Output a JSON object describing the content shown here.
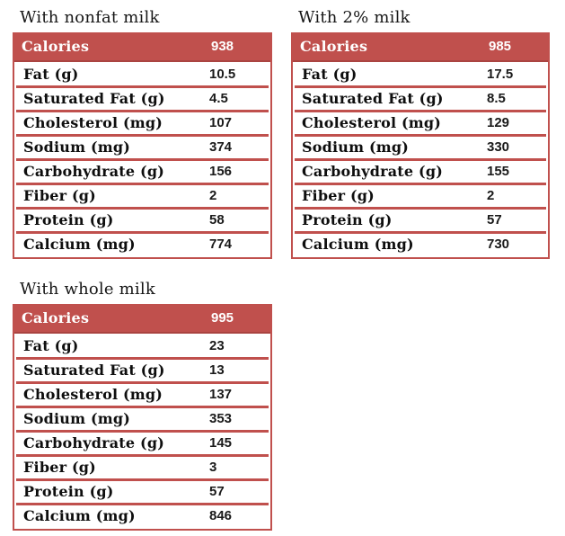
{
  "colors": {
    "accent": "#c0504d",
    "header_text": "#ffffff",
    "body_text": "#1a1a1a",
    "background": "#ffffff"
  },
  "chart_data": [
    {
      "type": "table",
      "title": "With nonfat milk",
      "header": {
        "label": "Calories",
        "value": 938
      },
      "rows": [
        {
          "label": "Fat (g)",
          "value": 10.5
        },
        {
          "label": "Saturated Fat (g)",
          "value": 4.5
        },
        {
          "label": "Cholesterol (mg)",
          "value": 107
        },
        {
          "label": "Sodium (mg)",
          "value": 374
        },
        {
          "label": "Carbohydrate (g)",
          "value": 156
        },
        {
          "label": "Fiber (g)",
          "value": 2
        },
        {
          "label": "Protein (g)",
          "value": 58
        },
        {
          "label": "Calcium (mg)",
          "value": 774
        }
      ]
    },
    {
      "type": "table",
      "title": "With 2% milk",
      "header": {
        "label": "Calories",
        "value": 985
      },
      "rows": [
        {
          "label": "Fat (g)",
          "value": 17.5
        },
        {
          "label": "Saturated Fat (g)",
          "value": 8.5
        },
        {
          "label": "Cholesterol (mg)",
          "value": 129
        },
        {
          "label": "Sodium (mg)",
          "value": 330
        },
        {
          "label": "Carbohydrate (g)",
          "value": 155
        },
        {
          "label": "Fiber (g)",
          "value": 2
        },
        {
          "label": "Protein (g)",
          "value": 57
        },
        {
          "label": "Calcium (mg)",
          "value": 730
        }
      ]
    },
    {
      "type": "table",
      "title": "With whole milk",
      "header": {
        "label": "Calories",
        "value": 995
      },
      "rows": [
        {
          "label": "Fat (g)",
          "value": 23
        },
        {
          "label": "Saturated Fat (g)",
          "value": 13
        },
        {
          "label": "Cholesterol (mg)",
          "value": 137
        },
        {
          "label": "Sodium (mg)",
          "value": 353
        },
        {
          "label": "Carbohydrate (g)",
          "value": 145
        },
        {
          "label": "Fiber (g)",
          "value": 3
        },
        {
          "label": "Protein (g)",
          "value": 57
        },
        {
          "label": "Calcium (mg)",
          "value": 846
        }
      ]
    }
  ]
}
